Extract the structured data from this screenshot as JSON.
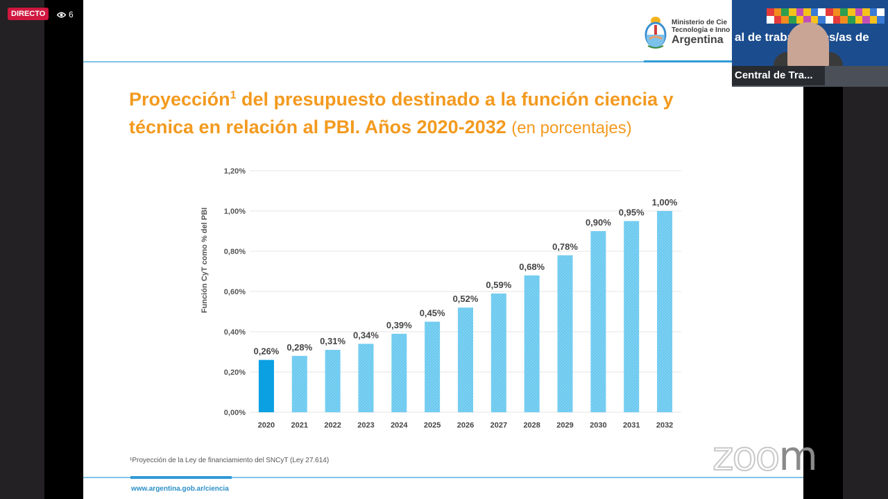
{
  "stream": {
    "live_badge": "DIRECTO",
    "viewer_icon": "eye-icon",
    "viewer_count": "6"
  },
  "video": {
    "banner_text": "al de trabajadores/as de",
    "participant_name": "Central de Tra..."
  },
  "slide": {
    "logo": {
      "line1": "Ministerio de Cie",
      "line2": "Tecnología e Inno",
      "line3": "Argentina"
    },
    "title_part1": "Proyección",
    "title_sup": "1",
    "title_part2": " del presupuesto destinado a la función ciencia y técnica en relación al PBI. Años 2020-2032 ",
    "title_sub": "(en porcentajes)",
    "footnote": "¹Proyección de la Ley de financiamiento del SNCyT (Ley 27.614)",
    "url": "www.argentina.gob.ar/ciencia"
  },
  "watermark": {
    "text_outline": "zoo",
    "text_solid": "m"
  },
  "colors": {
    "title_orange": "#f39a1f",
    "bar_solid": "#0aa0e2",
    "bar_hatched": "#6ccaf0",
    "live_red": "#d0173f",
    "accent_blue": "#2f9ad6"
  },
  "chart_data": {
    "type": "bar",
    "title": "Proyección del presupuesto destinado a la función ciencia y técnica en relación al PBI. Años 2020-2032 (en porcentajes)",
    "xlabel": "",
    "ylabel": "Función CyT como % del PBI",
    "categories": [
      "2020",
      "2021",
      "2022",
      "2023",
      "2024",
      "2025",
      "2026",
      "2027",
      "2028",
      "2029",
      "2030",
      "2031",
      "2032"
    ],
    "values": [
      0.26,
      0.28,
      0.31,
      0.34,
      0.39,
      0.45,
      0.52,
      0.59,
      0.68,
      0.78,
      0.9,
      0.95,
      1.0
    ],
    "value_labels": [
      "0,26%",
      "0,28%",
      "0,31%",
      "0,34%",
      "0,39%",
      "0,45%",
      "0,52%",
      "0,59%",
      "0,68%",
      "0,78%",
      "0,90%",
      "0,95%",
      "1,00%"
    ],
    "bar_styles": [
      "solid",
      "hatched",
      "hatched",
      "hatched",
      "hatched",
      "hatched",
      "hatched",
      "hatched",
      "hatched",
      "hatched",
      "hatched",
      "hatched",
      "hatched"
    ],
    "ylim": [
      0,
      1.2
    ],
    "yticks": [
      0,
      0.2,
      0.4,
      0.6,
      0.8,
      1.0,
      1.2
    ],
    "ytick_labels": [
      "0,00%",
      "0,20%",
      "0,40%",
      "0,60%",
      "0,80%",
      "1,00%",
      "1,20%"
    ],
    "grid": true,
    "legend": "none"
  }
}
